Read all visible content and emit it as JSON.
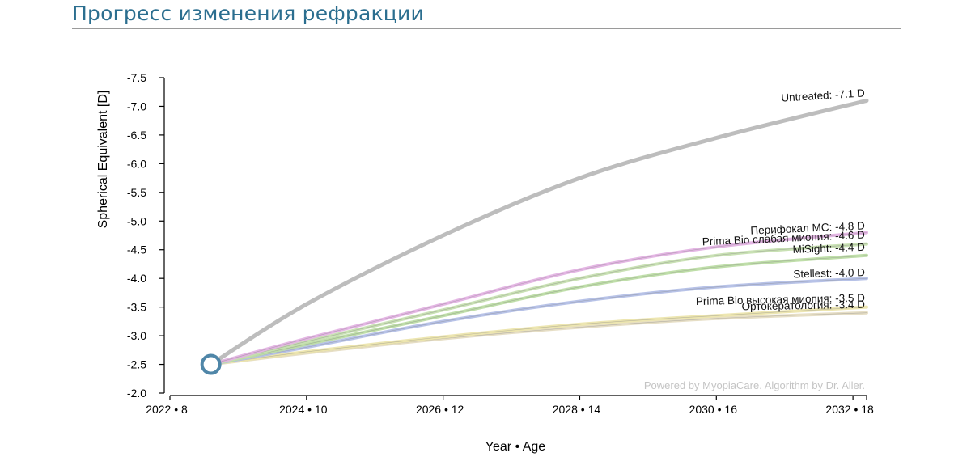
{
  "header": {
    "title": "Прогресс изменения рефракции"
  },
  "chart_data": {
    "type": "line",
    "title": "Прогресс изменения рефракции",
    "xlabel": "Year • Age",
    "ylabel": "Spherical Equivalent [D]",
    "x_ticks": [
      "2022 • 8",
      "2024 • 10",
      "2026 • 12",
      "2028 • 14",
      "2030 • 16",
      "2032 • 18"
    ],
    "x_tick_values": [
      0,
      2,
      4,
      6,
      8,
      10
    ],
    "xlim": [
      0,
      10.2
    ],
    "y_ticks": [
      "-2.0",
      "-2.5",
      "-3.0",
      "-3.5",
      "-4.0",
      "-4.5",
      "-5.0",
      "-5.5",
      "-6.0",
      "-6.5",
      "-7.0",
      "-7.5"
    ],
    "y_tick_values": [
      -2.0,
      -2.5,
      -3.0,
      -3.5,
      -4.0,
      -4.5,
      -5.0,
      -5.5,
      -6.0,
      -6.5,
      -7.0,
      -7.5
    ],
    "ylim": [
      -2.0,
      -7.5
    ],
    "start_point": {
      "x": 0.6,
      "y": -2.5
    },
    "watermark": "Powered by MyopiaCare. Algorithm by Dr. Aller.",
    "series": [
      {
        "name": "Untreated",
        "label": "Untreated: -7.1 D",
        "final": -7.1,
        "color": "#b9b9b9",
        "x": [
          0.6,
          2,
          4,
          6,
          8,
          10.2
        ],
        "y": [
          -2.5,
          -3.55,
          -4.75,
          -5.75,
          -6.45,
          -7.1
        ]
      },
      {
        "name": "Перифокал MC",
        "label": "Перифокал MC: -4.8 D",
        "final": -4.8,
        "color": "#e3b2e3",
        "x": [
          0.6,
          2,
          4,
          6,
          8,
          10.2
        ],
        "y": [
          -2.5,
          -2.95,
          -3.55,
          -4.15,
          -4.55,
          -4.8
        ]
      },
      {
        "name": "Prima Bio слабая миопия",
        "label": "Prima Bio слабая миопия: -4.6 D",
        "final": -4.6,
        "color": "#c6dfb0",
        "x": [
          0.6,
          2,
          4,
          6,
          8,
          10.2
        ],
        "y": [
          -2.5,
          -2.9,
          -3.45,
          -4.0,
          -4.4,
          -4.6
        ]
      },
      {
        "name": "MiSight",
        "label": "MiSight: -4.4 D",
        "final": -4.4,
        "color": "#bcdca4",
        "x": [
          0.6,
          2,
          4,
          6,
          8,
          10.2
        ],
        "y": [
          -2.5,
          -2.85,
          -3.35,
          -3.85,
          -4.2,
          -4.4
        ]
      },
      {
        "name": "Stellest",
        "label": "Stellest: -4.0 D",
        "final": -4.0,
        "color": "#b3bfe6",
        "x": [
          0.6,
          2,
          4,
          6,
          8,
          10.2
        ],
        "y": [
          -2.5,
          -2.8,
          -3.25,
          -3.6,
          -3.85,
          -4.0
        ]
      },
      {
        "name": "Prima Bio высокая миопия",
        "label": "Prima Bio высокая миопия: -3.5 D",
        "final": -3.5,
        "color": "#ece5ad",
        "x": [
          0.6,
          2,
          4,
          6,
          8,
          10.2
        ],
        "y": [
          -2.5,
          -2.72,
          -2.98,
          -3.2,
          -3.35,
          -3.5
        ]
      },
      {
        "name": "Ортокератология",
        "label": "Ортокератология: -3.4 D",
        "final": -3.4,
        "color": "#e5dcc2",
        "x": [
          0.6,
          2,
          4,
          6,
          8,
          10.2
        ],
        "y": [
          -2.5,
          -2.7,
          -2.95,
          -3.15,
          -3.3,
          -3.4
        ]
      }
    ]
  }
}
